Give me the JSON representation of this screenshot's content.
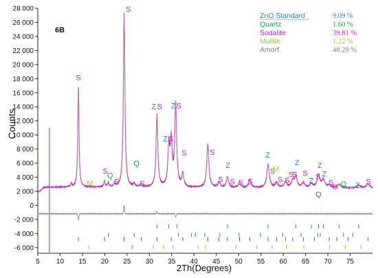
{
  "chart_data": {
    "type": "line",
    "sample_label": "6B",
    "xlabel": "2Th(Degrees)",
    "ylabel": "Counts",
    "xlim": [
      5,
      80
    ],
    "ylim": [
      -6800,
      28000
    ],
    "x_ticks": [
      5,
      10,
      15,
      20,
      25,
      30,
      35,
      40,
      45,
      50,
      55,
      60,
      65,
      70,
      75
    ],
    "y_ticks": [
      28000,
      26000,
      24000,
      22000,
      20000,
      18000,
      16000,
      14000,
      12000,
      10000,
      8000,
      6000,
      4000,
      2000,
      0,
      -2000,
      -4000,
      -6000
    ],
    "y_tick_labels": [
      "28 000",
      "26 000",
      "24 000",
      "22 000",
      "20 000",
      "18 000",
      "16 000",
      "14 000",
      "12 000",
      "10 000",
      "8 000",
      "6 000",
      "4 000",
      "2 000",
      "0",
      "-2 000",
      "-4 000",
      "-6 000"
    ],
    "grid": false,
    "colors": {
      "observed": "#9b1d9b",
      "calculated": "#cf8ad0",
      "difference": "#8a8a8a",
      "marker_line": "#5e6fcf",
      "zno": "#1f7fcf",
      "quartz": "#1f9a4a",
      "sodalite": "#c020c8",
      "mullite": "#8fcf2f",
      "amorf": "#7a7a7a"
    },
    "marker_line_x": 7.6,
    "background": 2600,
    "observed_peaks": [
      {
        "x": 12.5,
        "h": 500
      },
      {
        "x": 14.1,
        "h": 14300
      },
      {
        "x": 19.95,
        "h": 800
      },
      {
        "x": 20.8,
        "h": 600
      },
      {
        "x": 22.2,
        "h": 400
      },
      {
        "x": 24.35,
        "h": 24900
      },
      {
        "x": 26.6,
        "h": 500
      },
      {
        "x": 28.1,
        "h": 400
      },
      {
        "x": 31.7,
        "h": 10300
      },
      {
        "x": 34.35,
        "h": 5600
      },
      {
        "x": 34.9,
        "h": 6200
      },
      {
        "x": 35.9,
        "h": 11700
      },
      {
        "x": 37.5,
        "h": 1900
      },
      {
        "x": 43.1,
        "h": 6200
      },
      {
        "x": 45.6,
        "h": 700
      },
      {
        "x": 47.5,
        "h": 1500
      },
      {
        "x": 50.2,
        "h": 700
      },
      {
        "x": 52.5,
        "h": 1100
      },
      {
        "x": 56.6,
        "h": 3300
      },
      {
        "x": 58.5,
        "h": 700
      },
      {
        "x": 60.5,
        "h": 800
      },
      {
        "x": 62.1,
        "h": 900
      },
      {
        "x": 62.8,
        "h": 1500
      },
      {
        "x": 64.5,
        "h": 700
      },
      {
        "x": 66.3,
        "h": 500
      },
      {
        "x": 67.9,
        "h": 1800
      },
      {
        "x": 69.0,
        "h": 1100
      },
      {
        "x": 70.3,
        "h": 400
      },
      {
        "x": 72.5,
        "h": 500
      },
      {
        "x": 76.9,
        "h": 400
      },
      {
        "x": 79.0,
        "h": 600
      }
    ],
    "difference_baseline": -1200,
    "difference_spikes": [
      {
        "x": 14.1,
        "d": -900
      },
      {
        "x": 24.35,
        "d": 1100
      },
      {
        "x": 31.7,
        "d": 300
      },
      {
        "x": 35.9,
        "d": -500
      }
    ],
    "phase_tick_rows": [
      {
        "phase": "zno",
        "y": -3200,
        "x": [
          31.7,
          34.35,
          36.2,
          47.5,
          56.6,
          62.8,
          66.3,
          67.9,
          69.0,
          72.5,
          76.9
        ]
      },
      {
        "phase": "quartz",
        "y": -4400,
        "x": [
          20.8,
          26.6,
          36.5,
          39.4,
          40.3,
          42.4,
          45.8,
          50.1,
          54.9,
          59.9,
          64.0,
          67.7,
          68.3,
          73.5,
          75.6
        ]
      },
      {
        "phase": "sodalite",
        "y": -5000,
        "x": [
          14.1,
          19.95,
          24.35,
          28.2,
          31.7,
          34.9,
          37.5,
          43.1,
          45.6,
          47.5,
          50.2,
          52.5,
          56.6,
          58.5,
          60.5,
          62.1,
          64.5,
          67.0,
          70.3,
          72.0,
          74.5,
          79.0
        ]
      },
      {
        "phase": "mullite",
        "y": -6100,
        "x": [
          16.4,
          26.0,
          26.3,
          30.9,
          33.2,
          35.3,
          40.9,
          42.6,
          49.4,
          54.1,
          57.5,
          60.7,
          64.6,
          70.4,
          73.9,
          77.4
        ]
      }
    ],
    "peak_annotations": [
      {
        "t": "S",
        "x": 14.1,
        "y": 17800,
        "c": "sodalite"
      },
      {
        "t": "S",
        "x": 25.3,
        "y": 27500,
        "c": "sodalite"
      },
      {
        "t": "Z",
        "x": 31.0,
        "y": 13700,
        "c": "zno"
      },
      {
        "t": "S",
        "x": 32.3,
        "y": 13700,
        "c": "sodalite"
      },
      {
        "t": "Z",
        "x": 35.4,
        "y": 13800,
        "c": "zno"
      },
      {
        "t": "S",
        "x": 36.6,
        "y": 13800,
        "c": "sodalite"
      },
      {
        "t": "Z",
        "x": 33.6,
        "y": 9100,
        "c": "zno"
      },
      {
        "t": "S",
        "x": 34.8,
        "y": 9100,
        "c": "sodalite"
      },
      {
        "t": "S",
        "x": 37.8,
        "y": 7100,
        "c": "sodalite"
      },
      {
        "t": "S",
        "x": 44.1,
        "y": 7200,
        "c": "sodalite"
      },
      {
        "t": "S",
        "x": 20.1,
        "y": 4500,
        "c": "sodalite"
      },
      {
        "t": "Q",
        "x": 21.2,
        "y": 3900,
        "c": "quartz"
      },
      {
        "t": "M",
        "x": 16.7,
        "y": 2800,
        "c": "mullite"
      },
      {
        "t": "S",
        "x": 22.6,
        "y": 3000,
        "c": "sodalite"
      },
      {
        "t": "Q",
        "x": 27.1,
        "y": 5600,
        "c": "quartz"
      },
      {
        "t": "S",
        "x": 28.4,
        "y": 2800,
        "c": "sodalite"
      },
      {
        "t": "S",
        "x": 46.0,
        "y": 3300,
        "c": "sodalite"
      },
      {
        "t": "Z",
        "x": 47.6,
        "y": 5300,
        "c": "zno"
      },
      {
        "t": "S",
        "x": 48.6,
        "y": 3000,
        "c": "sodalite"
      },
      {
        "t": "S",
        "x": 50.5,
        "y": 2900,
        "c": "sodalite"
      },
      {
        "t": "S",
        "x": 52.6,
        "y": 3000,
        "c": "sodalite"
      },
      {
        "t": "Z",
        "x": 56.5,
        "y": 6800,
        "c": "zno"
      },
      {
        "t": "S",
        "x": 57.6,
        "y": 4500,
        "c": "sodalite"
      },
      {
        "t": "M",
        "x": 58.4,
        "y": 4800,
        "c": "mullite"
      },
      {
        "t": "S",
        "x": 59.3,
        "y": 3300,
        "c": "sodalite"
      },
      {
        "t": "S",
        "x": 60.9,
        "y": 3200,
        "c": "sodalite"
      },
      {
        "t": "S",
        "x": 61.8,
        "y": 4000,
        "c": "sodalite"
      },
      {
        "t": "S",
        "x": 62.6,
        "y": 4000,
        "c": "sodalite"
      },
      {
        "t": "Z",
        "x": 63.1,
        "y": 5700,
        "c": "zno"
      },
      {
        "t": "S",
        "x": 64.9,
        "y": 4200,
        "c": "sodalite"
      },
      {
        "t": "Z",
        "x": 66.3,
        "y": 3100,
        "c": "zno"
      },
      {
        "t": "Z",
        "x": 68.2,
        "y": 5300,
        "c": "zno"
      },
      {
        "t": "S",
        "x": 67.8,
        "y": 3700,
        "c": "sodalite"
      },
      {
        "t": "Z",
        "x": 69.2,
        "y": 4100,
        "c": "zno"
      },
      {
        "t": "S",
        "x": 70.7,
        "y": 2900,
        "c": "sodalite"
      },
      {
        "t": "S",
        "x": 71.6,
        "y": 2300,
        "c": "sodalite"
      },
      {
        "t": "Q",
        "x": 73.5,
        "y": 2700,
        "c": "quartz"
      },
      {
        "t": "Z",
        "x": 76.6,
        "y": 2500,
        "c": "zno"
      },
      {
        "t": "S",
        "x": 79.1,
        "y": 3000,
        "c": "sodalite"
      },
      {
        "t": "Q",
        "x": 67.9,
        "y": 1200,
        "c": "quartz"
      }
    ],
    "phases": [
      {
        "name": "ZnO Standard",
        "value": "9.09 %",
        "color": "zno"
      },
      {
        "name": "Quartz",
        "value": "1.60 %",
        "color": "quartz"
      },
      {
        "name": "Sodalite",
        "value": "39.81 %",
        "color": "sodalite"
      },
      {
        "name": "Mullite",
        "value": "1.22 %",
        "color": "mullite"
      },
      {
        "name": "Amorf.",
        "value": "48.28 %",
        "color": "amorf"
      }
    ]
  }
}
